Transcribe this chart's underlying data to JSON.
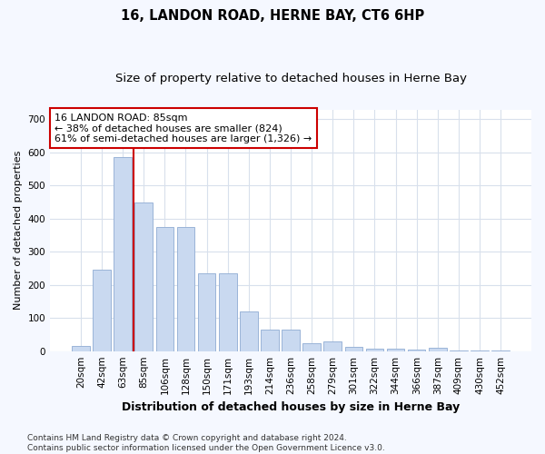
{
  "title": "16, LANDON ROAD, HERNE BAY, CT6 6HP",
  "subtitle": "Size of property relative to detached houses in Herne Bay",
  "xlabel": "Distribution of detached houses by size in Herne Bay",
  "ylabel": "Number of detached properties",
  "categories": [
    "20sqm",
    "42sqm",
    "63sqm",
    "85sqm",
    "106sqm",
    "128sqm",
    "150sqm",
    "171sqm",
    "193sqm",
    "214sqm",
    "236sqm",
    "258sqm",
    "279sqm",
    "301sqm",
    "322sqm",
    "344sqm",
    "366sqm",
    "387sqm",
    "409sqm",
    "430sqm",
    "452sqm"
  ],
  "values": [
    15,
    245,
    585,
    450,
    375,
    375,
    235,
    235,
    120,
    65,
    65,
    25,
    28,
    12,
    8,
    8,
    5,
    10,
    2,
    2,
    2
  ],
  "bar_color": "#c9d9f0",
  "bar_edgecolor": "#9ab4d8",
  "vline_x": 2.5,
  "vline_color": "#cc0000",
  "annotation_text": "16 LANDON ROAD: 85sqm\n← 38% of detached houses are smaller (824)\n61% of semi-detached houses are larger (1,326) →",
  "annotation_box_facecolor": "#ffffff",
  "annotation_box_edgecolor": "#cc0000",
  "ylim": [
    0,
    730
  ],
  "yticks": [
    0,
    100,
    200,
    300,
    400,
    500,
    600,
    700
  ],
  "plot_bg": "#ffffff",
  "fig_bg": "#f5f8ff",
  "grid_color": "#d8e0ec",
  "footer": "Contains HM Land Registry data © Crown copyright and database right 2024.\nContains public sector information licensed under the Open Government Licence v3.0.",
  "title_fontsize": 10.5,
  "subtitle_fontsize": 9.5,
  "xlabel_fontsize": 9,
  "ylabel_fontsize": 8,
  "tick_fontsize": 7.5,
  "annotation_fontsize": 8,
  "footer_fontsize": 6.5
}
